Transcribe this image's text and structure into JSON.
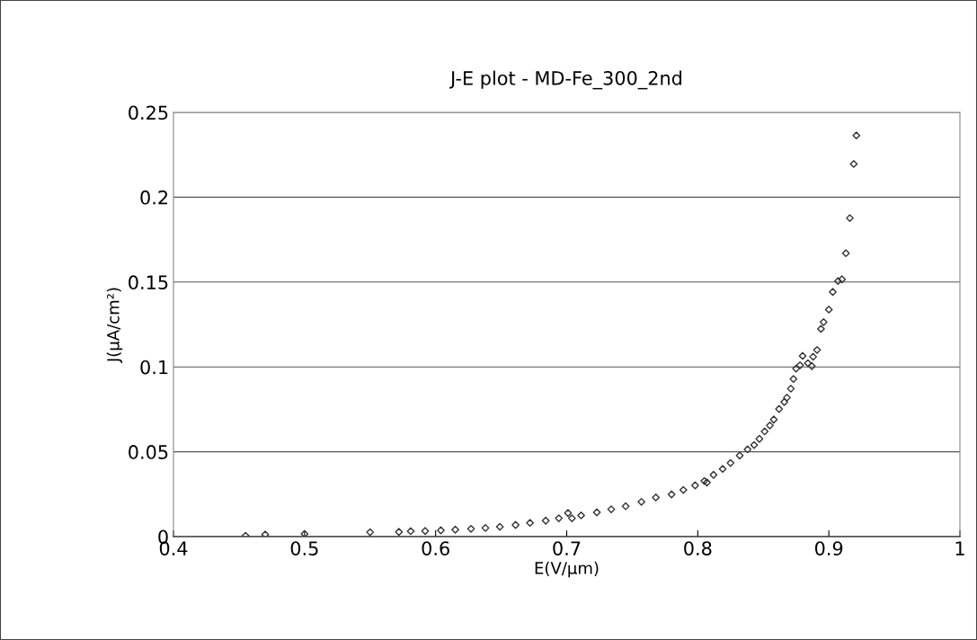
{
  "chart_data": {
    "type": "scatter",
    "title": "J-E plot - MD-Fe_300_2nd",
    "xlabel": "E(V/μm)",
    "ylabel": "J(μA/cm²)",
    "xlim": [
      0.4,
      1
    ],
    "xticks": [
      0.4,
      0.5,
      0.6,
      0.7,
      0.8,
      0.9,
      {
        "value": 1,
        "label": "1"
      }
    ],
    "ylim": [
      0,
      0.25
    ],
    "yticks": [
      0,
      0.05,
      0.1,
      0.15,
      0.2,
      0.25
    ],
    "grid": "y",
    "marker": "diamond",
    "legend": false,
    "series": [
      {
        "color": "#333333",
        "x": [
          0.455,
          0.47,
          0.5,
          0.55,
          0.572,
          0.581,
          0.592,
          0.604,
          0.615,
          0.627,
          0.638,
          0.649,
          0.661,
          0.672,
          0.684,
          0.694,
          0.701,
          0.704,
          0.711,
          0.723,
          0.734,
          0.745,
          0.757,
          0.768,
          0.78,
          0.789,
          0.798,
          0.805,
          0.807,
          0.812,
          0.819,
          0.825,
          0.832,
          0.838,
          0.843,
          0.847,
          0.851,
          0.855,
          0.858,
          0.862,
          0.866,
          0.868,
          0.871,
          0.873,
          0.875,
          0.878,
          0.88,
          0.884,
          0.887,
          0.888,
          0.891,
          0.894,
          0.896,
          0.9,
          0.903,
          0.907,
          0.91,
          0.913,
          0.916,
          0.919,
          0.921
        ],
        "values": [
          0.0005,
          0.0012,
          0.0016,
          0.0026,
          0.0028,
          0.0032,
          0.0033,
          0.0037,
          0.0041,
          0.0046,
          0.0051,
          0.0058,
          0.0069,
          0.0081,
          0.0094,
          0.0108,
          0.0139,
          0.0108,
          0.0125,
          0.0143,
          0.0161,
          0.0179,
          0.0205,
          0.0231,
          0.0249,
          0.0275,
          0.0302,
          0.0328,
          0.0319,
          0.0364,
          0.0399,
          0.0434,
          0.0478,
          0.0514,
          0.054,
          0.0576,
          0.062,
          0.0655,
          0.069,
          0.0752,
          0.0793,
          0.0819,
          0.0872,
          0.0929,
          0.099,
          0.101,
          0.1065,
          0.1022,
          0.1005,
          0.106,
          0.11,
          0.1224,
          0.1264,
          0.1338,
          0.1442,
          0.1506,
          0.1516,
          0.167,
          0.1877,
          0.2196,
          0.2364
        ]
      }
    ]
  }
}
